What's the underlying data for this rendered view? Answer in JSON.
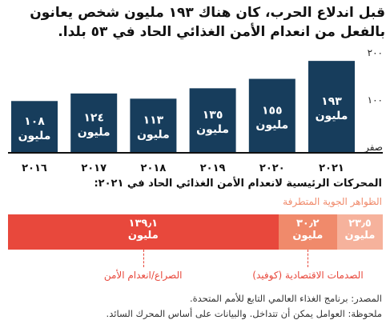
{
  "title_line1": "قبل اندلاع الحرب، كان هناك ١٩٣ مليون شخص يعانون",
  "title_line2": "بالفعل من انعدام الأمن الغذائي الحاد في ٥٣ بلدا.",
  "chart_data": [
    {
      "type": "bar",
      "categories": [
        "٢٠١٦",
        "٢٠١٧",
        "٢٠١٨",
        "٢٠١٩",
        "٢٠٢٠",
        "٢٠٢١"
      ],
      "values": [
        108,
        124,
        113,
        135,
        155,
        193
      ],
      "value_labels": [
        "١٠٨",
        "١٢٤",
        "١١٣",
        "١٣٥",
        "١٥٥",
        "١٩٣"
      ],
      "unit_label": "مليون",
      "y_ticks": [
        {
          "value": 0,
          "label": "صفر"
        },
        {
          "value": 100,
          "label": "١٠٠"
        },
        {
          "value": 200,
          "label": "٢٠٠"
        }
      ],
      "ylim": [
        0,
        200
      ],
      "bar_color": "#173d5c",
      "grid": false
    },
    {
      "type": "bar",
      "orientation": "horizontal-stacked",
      "title": "المحركات الرئيسية لانعدام الأمن الغذائي الحاد في ٢٠٢١:",
      "series": [
        {
          "name": "الصراع/انعدام الأمن",
          "value": 139.1,
          "value_label": "١٣٩٫١",
          "color": "#e8483c"
        },
        {
          "name": "الصدمات الاقتصادية (كوفيد)",
          "value": 30.2,
          "value_label": "٣٠٫٢",
          "color": "#f08a6b"
        },
        {
          "name": "الظواهر الجوية المتطرفة",
          "value": 23.5,
          "value_label": "٢٣٫٥",
          "color": "#f6b29c"
        }
      ],
      "unit_label": "مليون"
    }
  ],
  "source_line": "المصدر: برنامج الغذاء العالمي التابع للأمم المتحدة.",
  "note_line": "ملحوظة: العوامل يمكن أن تتداخل. والبيانات على أساس المحرك السائد."
}
